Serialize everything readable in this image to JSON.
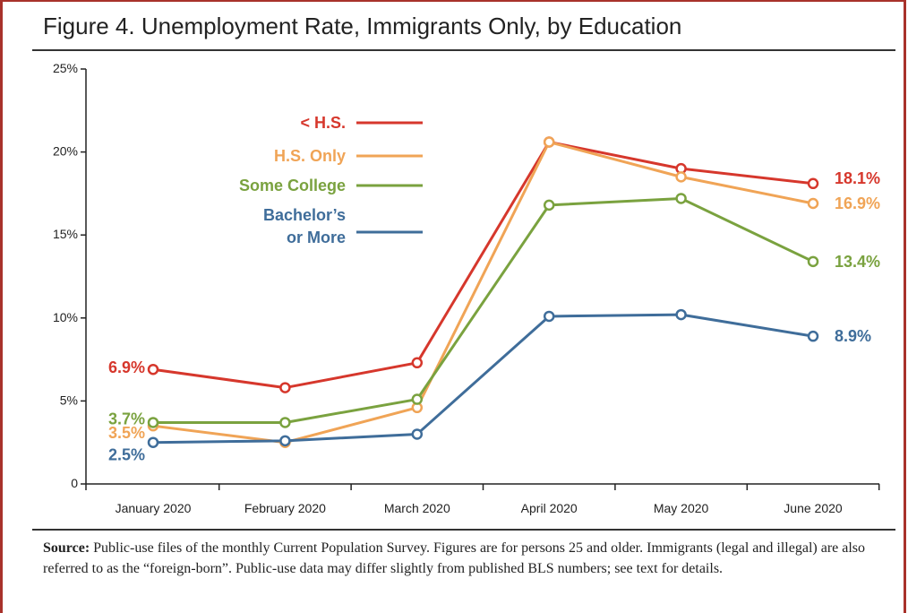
{
  "title": "Figure 4. Unemployment Rate, Immigrants Only, by Education",
  "source": {
    "label": "Source:",
    "text": "Public-use files of the monthly Current Population Survey. Figures are for persons 25 and older.  Immigrants (legal and illegal) are also referred to as the “foreign-born”. Public-use data may differ slightly from published BLS numbers; see text for details."
  },
  "chart_data": {
    "type": "line",
    "title": "Figure 4. Unemployment Rate, Immigrants Only, by Education",
    "xlabel": "",
    "ylabel": "",
    "categories": [
      "January 2020",
      "February 2020",
      "March 2020",
      "April 2020",
      "May 2020",
      "June 2020"
    ],
    "ylim": [
      0,
      25
    ],
    "y_ticks": [
      0,
      5,
      10,
      15,
      20,
      25
    ],
    "y_tick_labels": [
      "0",
      "5%",
      "10%",
      "15%",
      "20%",
      "25%"
    ],
    "grid": false,
    "legend": "top-left",
    "series": [
      {
        "name": "< H.S.",
        "legend_lines": [
          "< H.S."
        ],
        "color": "#d6372c",
        "values": [
          6.9,
          5.8,
          7.3,
          20.6,
          19.0,
          18.1
        ],
        "start_label": "6.9%",
        "end_label": "18.1%"
      },
      {
        "name": "H.S. Only",
        "legend_lines": [
          "H.S. Only"
        ],
        "color": "#f0a456",
        "values": [
          3.5,
          2.5,
          4.6,
          20.6,
          18.5,
          16.9
        ],
        "start_label": "3.5%",
        "end_label": "16.9%"
      },
      {
        "name": "Some College",
        "legend_lines": [
          "Some College"
        ],
        "color": "#7aa23f",
        "values": [
          3.7,
          3.7,
          5.1,
          16.8,
          17.2,
          13.4
        ],
        "start_label": "3.7%",
        "end_label": "13.4%"
      },
      {
        "name": "Bachelor’s or More",
        "legend_lines": [
          "Bachelor’s",
          "or More"
        ],
        "color": "#3f6d9a",
        "values": [
          2.5,
          2.6,
          3.0,
          10.1,
          10.2,
          8.9
        ],
        "start_label": "2.5%",
        "end_label": "8.9%"
      }
    ]
  }
}
